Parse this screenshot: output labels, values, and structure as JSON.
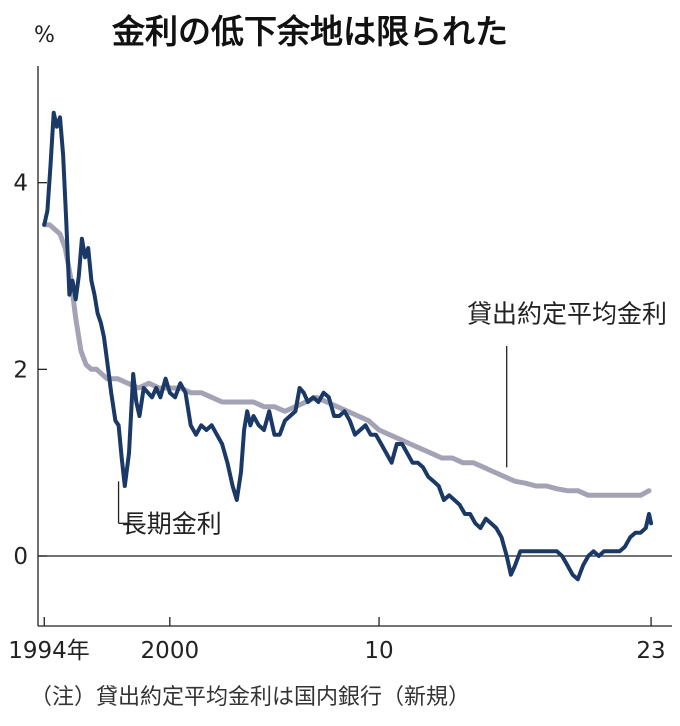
{
  "chart_data": {
    "type": "line",
    "title": "金利の低下余地は限られた",
    "unit": "%",
    "note": "（注）貸出約定平均金利は国内銀行（新規）",
    "x_ticks": [
      {
        "x": 1994,
        "label": "1994年"
      },
      {
        "x": 2000,
        "label": "2000"
      },
      {
        "x": 2010,
        "label": "10"
      },
      {
        "x": 2023,
        "label": "23"
      }
    ],
    "y_ticks": [
      0,
      2,
      4
    ],
    "xlim": [
      1993.7,
      2024.0
    ],
    "ylim": [
      -0.75,
      5.25
    ],
    "grid": false,
    "colors": {
      "long_term": "#1b3966",
      "lending": "#a3a3b5"
    },
    "series": [
      {
        "name": "長期金利",
        "color": "#1b3966",
        "label_at": [
          1997.7,
          0.35
        ],
        "leader": [
          [
            1997.55,
            0.8
          ],
          [
            1997.55,
            0.35
          ]
        ],
        "x": [
          1994.0,
          1994.15,
          1994.3,
          1994.45,
          1994.6,
          1994.75,
          1994.9,
          1995.05,
          1995.2,
          1995.35,
          1995.5,
          1995.65,
          1995.8,
          1995.95,
          1996.1,
          1996.25,
          1996.4,
          1996.55,
          1996.7,
          1996.85,
          1997.0,
          1997.2,
          1997.4,
          1997.55,
          1997.7,
          1997.85,
          1998.05,
          1998.25,
          1998.4,
          1998.55,
          1998.75,
          1998.95,
          1999.15,
          1999.35,
          1999.55,
          1999.8,
          2000.0,
          2000.25,
          2000.5,
          2000.75,
          2001.0,
          2001.25,
          2001.5,
          2001.75,
          2002.0,
          2002.25,
          2002.5,
          2002.75,
          2003.0,
          2003.2,
          2003.4,
          2003.55,
          2003.7,
          2003.85,
          2004.0,
          2004.25,
          2004.5,
          2004.75,
          2005.0,
          2005.25,
          2005.5,
          2005.75,
          2006.0,
          2006.2,
          2006.4,
          2006.6,
          2006.85,
          2007.1,
          2007.35,
          2007.6,
          2007.85,
          2008.1,
          2008.35,
          2008.6,
          2008.85,
          2009.1,
          2009.35,
          2009.6,
          2009.85,
          2010.1,
          2010.35,
          2010.6,
          2010.85,
          2011.1,
          2011.35,
          2011.6,
          2011.85,
          2012.1,
          2012.35,
          2012.6,
          2012.85,
          2013.1,
          2013.35,
          2013.6,
          2013.85,
          2014.1,
          2014.35,
          2014.6,
          2014.85,
          2015.1,
          2015.35,
          2015.6,
          2015.85,
          2016.1,
          2016.3,
          2016.5,
          2016.75,
          2017.0,
          2017.25,
          2017.5,
          2017.75,
          2018.0,
          2018.25,
          2018.5,
          2018.75,
          2019.0,
          2019.25,
          2019.5,
          2019.75,
          2020.0,
          2020.25,
          2020.5,
          2020.75,
          2021.0,
          2021.25,
          2021.5,
          2021.75,
          2022.0,
          2022.25,
          2022.5,
          2022.75,
          2022.9,
          2023.0
        ],
        "values": [
          3.55,
          3.7,
          4.2,
          4.75,
          4.6,
          4.7,
          4.3,
          3.6,
          2.8,
          2.95,
          2.75,
          3.0,
          3.4,
          3.2,
          3.3,
          2.95,
          2.8,
          2.6,
          2.5,
          2.35,
          2.1,
          1.75,
          1.45,
          1.4,
          1.05,
          0.75,
          1.1,
          1.95,
          1.65,
          1.5,
          1.8,
          1.75,
          1.7,
          1.8,
          1.7,
          1.9,
          1.75,
          1.7,
          1.85,
          1.75,
          1.4,
          1.3,
          1.4,
          1.35,
          1.4,
          1.3,
          1.2,
          1.0,
          0.75,
          0.6,
          0.9,
          1.35,
          1.55,
          1.4,
          1.5,
          1.4,
          1.35,
          1.55,
          1.3,
          1.3,
          1.45,
          1.5,
          1.55,
          1.8,
          1.75,
          1.65,
          1.7,
          1.65,
          1.75,
          1.7,
          1.5,
          1.5,
          1.55,
          1.45,
          1.3,
          1.35,
          1.4,
          1.3,
          1.3,
          1.2,
          1.1,
          1.0,
          1.2,
          1.2,
          1.1,
          1.0,
          1.0,
          0.95,
          0.85,
          0.8,
          0.75,
          0.6,
          0.65,
          0.6,
          0.55,
          0.45,
          0.45,
          0.35,
          0.3,
          0.4,
          0.35,
          0.3,
          0.2,
          0.0,
          -0.2,
          -0.1,
          0.05,
          0.05,
          0.05,
          0.05,
          0.05,
          0.05,
          0.05,
          0.05,
          0.0,
          -0.1,
          -0.2,
          -0.25,
          -0.1,
          0.0,
          0.05,
          0.0,
          0.05,
          0.05,
          0.05,
          0.05,
          0.1,
          0.2,
          0.25,
          0.25,
          0.3,
          0.45,
          0.35
        ]
      },
      {
        "name": "貸出約定平均金利",
        "color": "#a3a3b5",
        "label_at": [
          2014.2,
          2.6
        ],
        "leader": [
          [
            2016.1,
            0.95
          ],
          [
            2016.1,
            2.25
          ]
        ],
        "x": [
          1994.0,
          1994.25,
          1994.5,
          1994.75,
          1995.0,
          1995.25,
          1995.5,
          1995.75,
          1996.0,
          1996.25,
          1996.5,
          1996.75,
          1997.0,
          1997.5,
          1998.0,
          1998.5,
          1999.0,
          1999.5,
          2000.0,
          2000.5,
          2001.0,
          2001.5,
          2002.0,
          2002.5,
          2003.0,
          2003.5,
          2004.0,
          2004.5,
          2005.0,
          2005.5,
          2006.0,
          2006.5,
          2007.0,
          2007.5,
          2008.0,
          2008.5,
          2009.0,
          2009.5,
          2010.0,
          2010.5,
          2011.0,
          2011.5,
          2012.0,
          2012.5,
          2013.0,
          2013.5,
          2014.0,
          2014.5,
          2015.0,
          2015.5,
          2016.0,
          2016.5,
          2017.0,
          2017.5,
          2018.0,
          2018.5,
          2019.0,
          2019.5,
          2020.0,
          2020.5,
          2021.0,
          2021.5,
          2022.0,
          2022.5,
          2022.9
        ],
        "values": [
          3.55,
          3.55,
          3.5,
          3.45,
          3.3,
          3.0,
          2.55,
          2.2,
          2.05,
          2.0,
          2.0,
          1.95,
          1.9,
          1.9,
          1.85,
          1.8,
          1.85,
          1.8,
          1.8,
          1.8,
          1.75,
          1.75,
          1.7,
          1.65,
          1.65,
          1.65,
          1.65,
          1.6,
          1.6,
          1.55,
          1.6,
          1.65,
          1.7,
          1.65,
          1.6,
          1.55,
          1.5,
          1.45,
          1.35,
          1.3,
          1.25,
          1.2,
          1.15,
          1.1,
          1.05,
          1.05,
          1.0,
          1.0,
          0.95,
          0.9,
          0.85,
          0.8,
          0.78,
          0.75,
          0.75,
          0.72,
          0.7,
          0.7,
          0.65,
          0.65,
          0.65,
          0.65,
          0.65,
          0.65,
          0.7
        ]
      }
    ]
  }
}
